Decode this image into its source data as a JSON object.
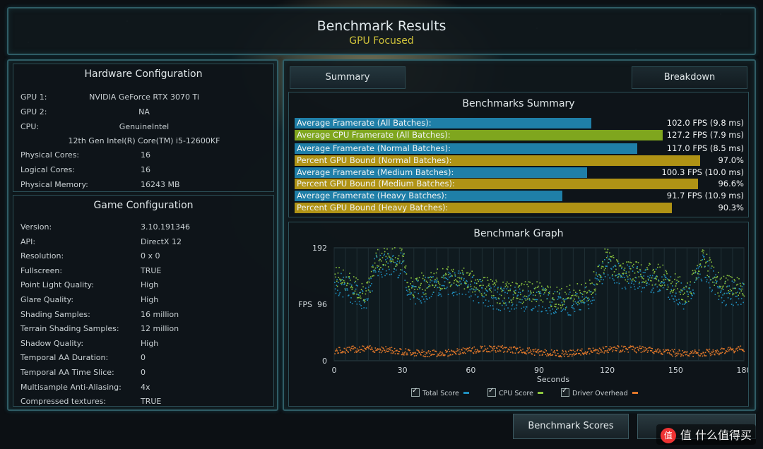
{
  "header": {
    "title": "Benchmark Results",
    "subtitle": "GPU Focused"
  },
  "hardware": {
    "title": "Hardware Configuration",
    "gpu1_label": "GPU 1:",
    "gpu1_value": "NVIDIA GeForce RTX 3070 Ti",
    "gpu2_label": "GPU 2:",
    "gpu2_value": "NA",
    "cpu_label": "CPU:",
    "cpu_value": "GenuineIntel",
    "cpu_model": "12th Gen Intel(R) Core(TM) i5-12600KF",
    "rows": [
      {
        "k": "Physical Cores:",
        "v": "16"
      },
      {
        "k": "Logical Cores:",
        "v": "16"
      },
      {
        "k": "Physical Memory:",
        "v": "16243  MB"
      }
    ]
  },
  "game": {
    "title": "Game Configuration",
    "rows": [
      {
        "k": "Version:",
        "v": "3.10.191346"
      },
      {
        "k": "API:",
        "v": "DirectX 12"
      },
      {
        "k": "Resolution:",
        "v": "0 x 0"
      },
      {
        "k": "Fullscreen:",
        "v": "TRUE"
      },
      {
        "k": "Point Light Quality:",
        "v": "High"
      },
      {
        "k": "Glare Quality:",
        "v": "High"
      },
      {
        "k": "Shading Samples:",
        "v": "16 million"
      },
      {
        "k": "Terrain Shading Samples:",
        "v": "12 million"
      },
      {
        "k": "Shadow Quality:",
        "v": "High"
      },
      {
        "k": "Temporal AA Duration:",
        "v": "0"
      },
      {
        "k": "Temporal AA Time Slice:",
        "v": "0"
      },
      {
        "k": "Multisample Anti-Aliasing:",
        "v": "4x"
      },
      {
        "k": "Compressed textures:",
        "v": "TRUE"
      }
    ]
  },
  "tabs": {
    "summary": "Summary",
    "breakdown": "Breakdown"
  },
  "summary": {
    "title": "Benchmarks Summary",
    "rows": [
      {
        "label": "Average Framerate (All Batches):",
        "value": "102.0 FPS (9.8 ms)",
        "fraction": 0.71,
        "color": "#1f7fa8"
      },
      {
        "label": "Average CPU Framerate (All Batches):",
        "value": "127.2 FPS (7.9 ms)",
        "fraction": 0.88,
        "color": "#7fa61e"
      },
      {
        "label": "Average Framerate (Normal Batches):",
        "value": "117.0 FPS (8.5 ms)",
        "fraction": 0.82,
        "color": "#1f7fa8"
      },
      {
        "label": "Percent GPU Bound (Normal Batches):",
        "value": "97.0%",
        "fraction": 0.97,
        "color": "#b09315"
      },
      {
        "label": "Average Framerate (Medium Batches):",
        "value": "100.3 FPS (10.0 ms)",
        "fraction": 0.7,
        "color": "#1f7fa8"
      },
      {
        "label": "Percent GPU Bound (Medium Batches):",
        "value": "96.6%",
        "fraction": 0.966,
        "color": "#b09315"
      },
      {
        "label": "Average Framerate (Heavy Batches):",
        "value": "91.7 FPS (10.9 ms)",
        "fraction": 0.64,
        "color": "#1f7fa8"
      },
      {
        "label": "Percent GPU Bound (Heavy Batches):",
        "value": "90.3%",
        "fraction": 0.903,
        "color": "#b09315"
      }
    ]
  },
  "graph": {
    "title": "Benchmark Graph",
    "ylabel": "FPS",
    "xlabel": "Seconds",
    "ytick_labels": [
      "192",
      "96",
      "0"
    ],
    "xtick_labels": [
      "0",
      "30",
      "60",
      "90",
      "120",
      "150",
      "180"
    ],
    "legend": [
      {
        "label": "Total Score",
        "color": "#1f8fbf"
      },
      {
        "label": "CPU Score",
        "color": "#8cc63e"
      },
      {
        "label": "Driver Overhead",
        "color": "#e0772a"
      }
    ]
  },
  "buttons": {
    "benchmark_scores": "Benchmark Scores"
  },
  "watermark": {
    "text": "值 什么值得买",
    "logo": "值"
  }
}
